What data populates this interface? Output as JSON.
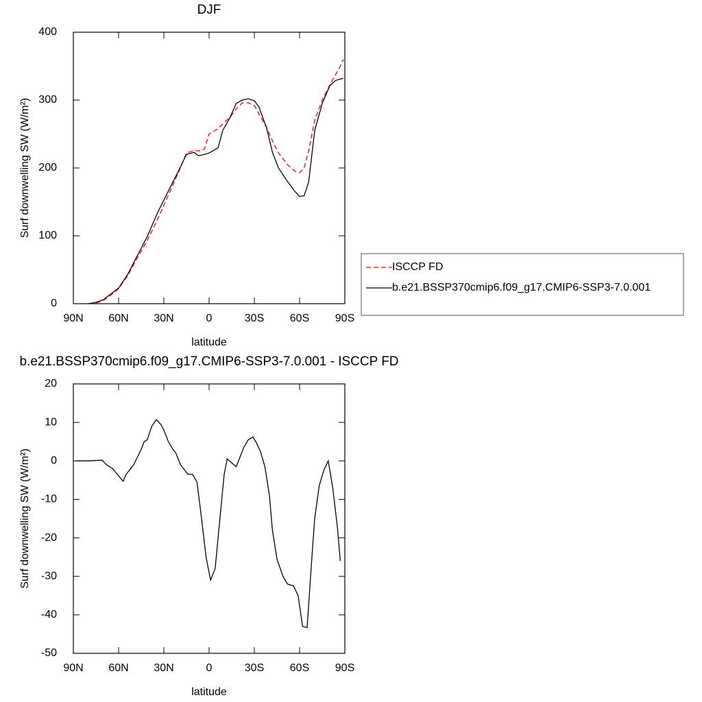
{
  "chart_data": [
    {
      "type": "line",
      "title": "DJF",
      "xlabel": "latitude",
      "ylabel": "Surf downwelling SW (W/m²)",
      "xlim": [
        90,
        -90
      ],
      "xticks": [
        {
          "value": 90,
          "label": "90N"
        },
        {
          "value": 60,
          "label": "60N"
        },
        {
          "value": 30,
          "label": "30N"
        },
        0,
        {
          "value": -30,
          "label": "30S"
        },
        {
          "value": -60,
          "label": "60S"
        },
        {
          "value": -90,
          "label": "90S"
        }
      ],
      "ylim": [
        0,
        400
      ],
      "yticks": [
        0,
        100,
        200,
        300,
        400
      ],
      "legend": "right",
      "x": [
        80,
        75,
        70,
        66,
        60,
        54,
        48,
        41,
        34,
        27,
        20,
        15,
        10,
        7,
        3,
        0,
        -3,
        -6,
        -9,
        -14,
        -18,
        -22,
        -26,
        -30,
        -33,
        -38,
        -42,
        -46,
        -52,
        -57,
        -60,
        -63,
        -66,
        -70,
        -75,
        -80,
        -84,
        -87,
        -89
      ],
      "series": [
        {
          "name": "ISCCP FD",
          "color": "#ff0000",
          "linestyle": "dashed",
          "values": [
            0,
            1,
            5,
            11,
            22,
            41,
            66,
            93,
            125,
            160,
            195,
            222,
            226,
            225,
            228,
            250,
            254,
            258,
            265,
            275,
            287,
            296,
            296,
            292,
            280,
            260,
            240,
            222,
            205,
            195,
            193,
            200,
            225,
            270,
            300,
            322,
            338,
            350,
            360
          ]
        },
        {
          "name": "b.e21.BSSP370cmip6.f09_g17.CMIP6-SSP3-7.0.001",
          "color": "#000000",
          "linestyle": "solid",
          "values": [
            0,
            2,
            6,
            13,
            23,
            43,
            69,
            99,
            135,
            166,
            197,
            220,
            223,
            218,
            220,
            222,
            226,
            230,
            255,
            275,
            295,
            300,
            302,
            299,
            290,
            260,
            223,
            200,
            180,
            165,
            158,
            159,
            179,
            255,
            295,
            321,
            329,
            331,
            332
          ]
        }
      ]
    },
    {
      "type": "line",
      "title": "b.e21.BSSP370cmip6.f09_g17.CMIP6-SSP3-7.0.001 - ISCCP FD",
      "xlabel": "latitude",
      "ylabel": "Surf downwelling SW (W/m²)",
      "xlim": [
        90,
        -90
      ],
      "xticks": [
        {
          "value": 90,
          "label": "90N"
        },
        {
          "value": 60,
          "label": "60N"
        },
        {
          "value": 30,
          "label": "30N"
        },
        0,
        {
          "value": -30,
          "label": "30S"
        },
        {
          "value": -60,
          "label": "60S"
        },
        {
          "value": -90,
          "label": "90S"
        }
      ],
      "ylim": [
        -50,
        20
      ],
      "yticks": [
        20,
        10,
        0,
        -10,
        -20,
        -30,
        -40,
        -50
      ],
      "color": "#000000",
      "x": [
        88,
        80,
        71,
        68,
        64,
        57,
        55,
        50,
        45,
        43,
        41,
        38,
        35,
        32,
        30,
        27,
        24,
        22,
        19,
        17,
        14,
        11,
        8,
        5,
        2,
        -1,
        -4,
        -10,
        -12,
        -15,
        -18,
        -20,
        -23,
        -26,
        -29,
        -31,
        -34,
        -37,
        -40,
        -42,
        -45,
        -49,
        -52,
        -56,
        -59,
        -62,
        -65,
        -68,
        -70,
        -73,
        -76,
        -79,
        -82,
        -85,
        -87
      ],
      "values": [
        0,
        0,
        0.2,
        -1,
        -2,
        -5.3,
        -3.5,
        -1,
        3,
        5,
        5.5,
        9,
        10.7,
        9.5,
        8,
        5,
        3,
        2,
        -1,
        -2,
        -3.5,
        -3.5,
        -5.5,
        -15,
        -25,
        -31,
        -28,
        -3.5,
        0.5,
        -0.5,
        -1.5,
        0.5,
        3.5,
        5.5,
        6.2,
        5,
        2.5,
        -1.5,
        -9,
        -18,
        -25.5,
        -30,
        -32,
        -32.5,
        -35,
        -43,
        -43.3,
        -26,
        -15,
        -6.5,
        -2.5,
        0,
        -7,
        -17,
        -26
      ]
    }
  ]
}
